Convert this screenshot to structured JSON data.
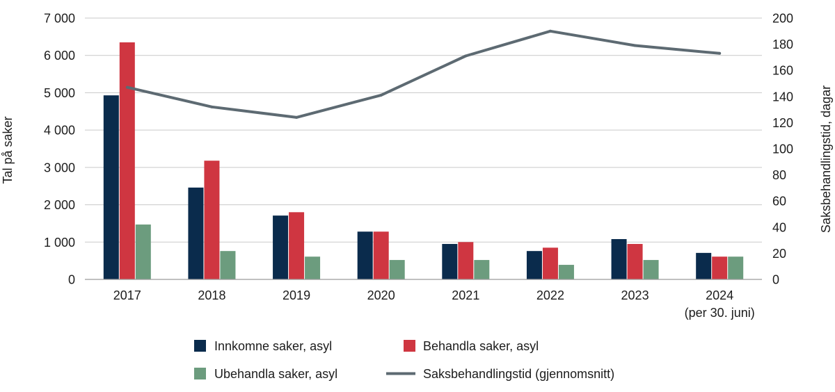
{
  "chart_data": {
    "type": "bar",
    "categories": [
      "2017",
      "2018",
      "2019",
      "2020",
      "2021",
      "2022",
      "2023",
      "2024"
    ],
    "category_notes": [
      null,
      null,
      null,
      null,
      null,
      null,
      null,
      "(per 30. juni)"
    ],
    "series": [
      {
        "name": "Innkomne saker, asyl",
        "type": "bar",
        "axis": "left",
        "color": "#0a2b4c",
        "values": [
          4930,
          2460,
          1710,
          1280,
          950,
          760,
          1080,
          710
        ]
      },
      {
        "name": "Behandla saker, asyl",
        "type": "bar",
        "axis": "left",
        "color": "#cf3641",
        "values": [
          6350,
          3180,
          1800,
          1280,
          1000,
          850,
          950,
          610
        ]
      },
      {
        "name": "Ubehandla saker, asyl",
        "type": "bar",
        "axis": "left",
        "color": "#6c9c7e",
        "values": [
          1470,
          760,
          610,
          520,
          520,
          390,
          520,
          610
        ]
      },
      {
        "name": "Saksbehandlingstid (gjennomsnitt)",
        "type": "line",
        "axis": "right",
        "color": "#5d6a72",
        "values": [
          147,
          132,
          124,
          141,
          171,
          190,
          179,
          173
        ]
      }
    ],
    "y_left": {
      "label": "Tal på saker",
      "range": [
        0,
        7000
      ],
      "ticks": [
        0,
        1000,
        2000,
        3000,
        4000,
        5000,
        6000,
        7000
      ],
      "tick_labels": [
        "0",
        "1 000",
        "2 000",
        "3 000",
        "4 000",
        "5 000",
        "6 000",
        "7 000"
      ]
    },
    "y_right": {
      "label": "Saksbehandlingstid, dagar",
      "range": [
        0,
        200
      ],
      "ticks": [
        0,
        20,
        40,
        60,
        80,
        100,
        120,
        140,
        160,
        180,
        200
      ],
      "tick_labels": [
        "0",
        "20",
        "40",
        "60",
        "80",
        "100",
        "120",
        "140",
        "160",
        "180",
        "200"
      ]
    },
    "grid": true,
    "legend": "bottom"
  }
}
